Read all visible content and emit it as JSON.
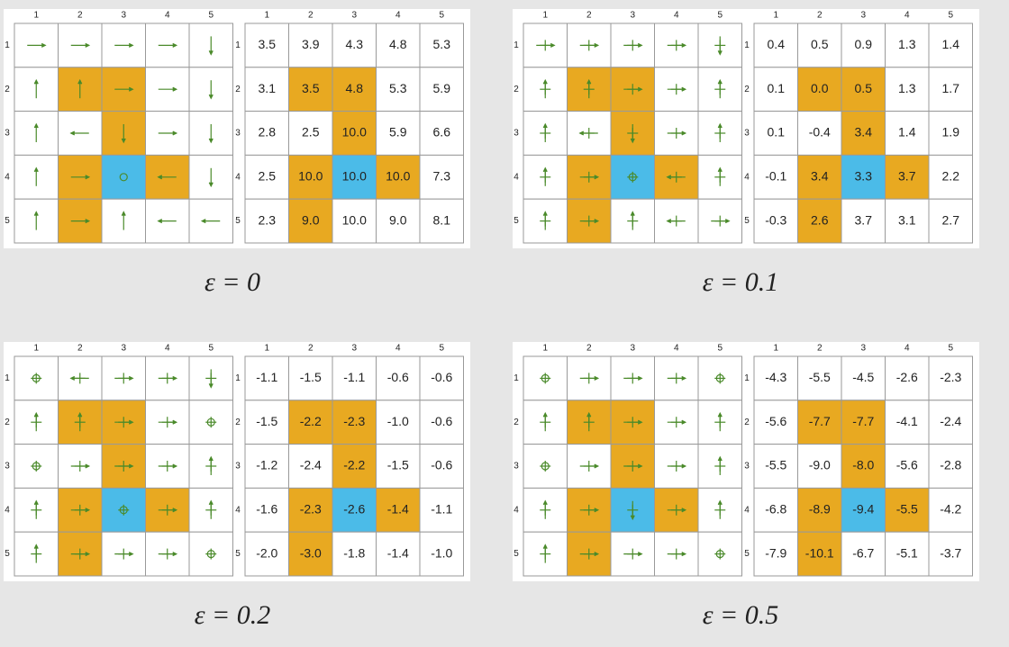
{
  "grid_labels": {
    "columns": [
      "1",
      "2",
      "3",
      "4",
      "5"
    ],
    "rows": [
      "1",
      "2",
      "3",
      "4",
      "5"
    ]
  },
  "panels": [
    {
      "label": "ε = 0",
      "values": [
        [
          "3.5",
          "3.9",
          "4.3",
          "4.8",
          "5.3"
        ],
        [
          "3.1",
          "3.5",
          "4.8",
          "5.3",
          "5.9"
        ],
        [
          "2.8",
          "2.5",
          "10.0",
          "5.9",
          "6.6"
        ],
        [
          "2.5",
          "10.0",
          "10.0",
          "10.0",
          "7.3"
        ],
        [
          "2.3",
          "9.0",
          "10.0",
          "9.0",
          "8.1"
        ]
      ]
    },
    {
      "label": "ε = 0.1",
      "values": [
        [
          "0.4",
          "0.5",
          "0.9",
          "1.3",
          "1.4"
        ],
        [
          "0.1",
          "0.0",
          "0.5",
          "1.3",
          "1.7"
        ],
        [
          "0.1",
          "-0.4",
          "3.4",
          "1.4",
          "1.9"
        ],
        [
          "-0.1",
          "3.4",
          "3.3",
          "3.7",
          "2.2"
        ],
        [
          "-0.3",
          "2.6",
          "3.7",
          "3.1",
          "2.7"
        ]
      ]
    },
    {
      "label": "ε = 0.2",
      "values": [
        [
          "-1.1",
          "-1.5",
          "-1.1",
          "-0.6",
          "-0.6"
        ],
        [
          "-1.5",
          "-2.2",
          "-2.3",
          "-1.0",
          "-0.6"
        ],
        [
          "-1.2",
          "-2.4",
          "-2.2",
          "-1.5",
          "-0.6"
        ],
        [
          "-1.6",
          "-2.3",
          "-2.6",
          "-1.4",
          "-1.1"
        ],
        [
          "-2.0",
          "-3.0",
          "-1.8",
          "-1.4",
          "-1.0"
        ]
      ]
    },
    {
      "label": "ε = 0.5",
      "values": [
        [
          "-4.3",
          "-5.5",
          "-4.5",
          "-2.6",
          "-2.3"
        ],
        [
          "-5.6",
          "-7.7",
          "-7.7",
          "-4.1",
          "-2.4"
        ],
        [
          "-5.5",
          "-9.0",
          "-8.0",
          "-5.6",
          "-2.8"
        ],
        [
          "-6.8",
          "-8.9",
          "-9.4",
          "-5.5",
          "-4.2"
        ],
        [
          "-7.9",
          "-10.1",
          "-6.7",
          "-5.1",
          "-3.7"
        ]
      ]
    }
  ]
}
